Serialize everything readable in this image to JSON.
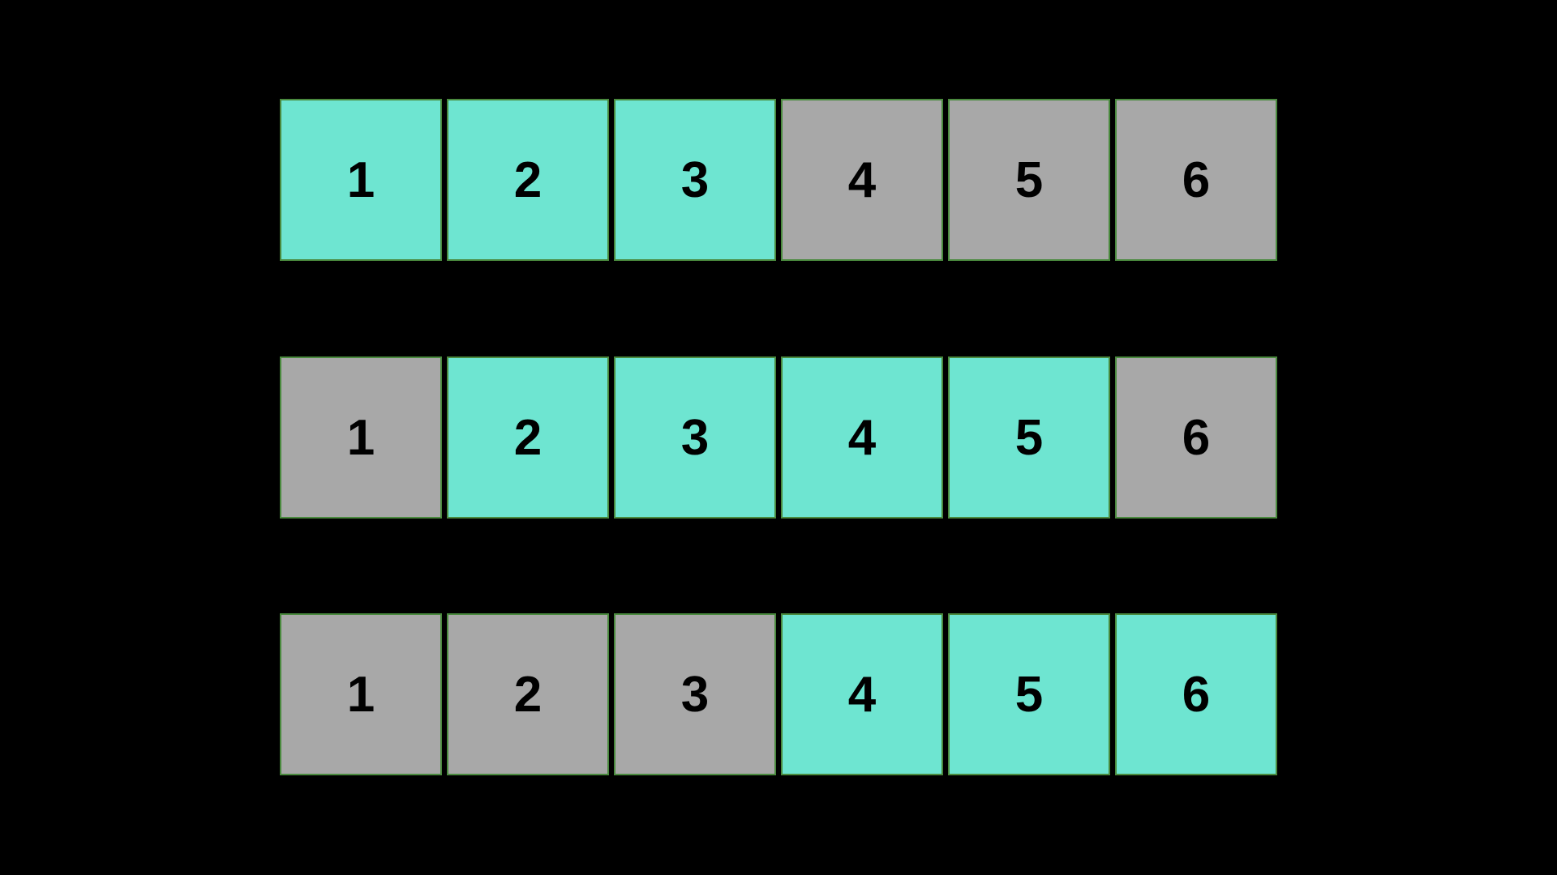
{
  "colors": {
    "highlight": "#6ee5d1",
    "inactive": "#a8a8a8",
    "background": "#000000",
    "border": "#4a8a3e"
  },
  "rows": [
    {
      "cells": [
        {
          "label": "1",
          "highlighted": true
        },
        {
          "label": "2",
          "highlighted": true
        },
        {
          "label": "3",
          "highlighted": true
        },
        {
          "label": "4",
          "highlighted": false
        },
        {
          "label": "5",
          "highlighted": false
        },
        {
          "label": "6",
          "highlighted": false
        }
      ]
    },
    {
      "cells": [
        {
          "label": "1",
          "highlighted": false
        },
        {
          "label": "2",
          "highlighted": true
        },
        {
          "label": "3",
          "highlighted": true
        },
        {
          "label": "4",
          "highlighted": true
        },
        {
          "label": "5",
          "highlighted": true
        },
        {
          "label": "6",
          "highlighted": false
        }
      ]
    },
    {
      "cells": [
        {
          "label": "1",
          "highlighted": false
        },
        {
          "label": "2",
          "highlighted": false
        },
        {
          "label": "3",
          "highlighted": false
        },
        {
          "label": "4",
          "highlighted": true
        },
        {
          "label": "5",
          "highlighted": true
        },
        {
          "label": "6",
          "highlighted": true
        }
      ]
    }
  ]
}
